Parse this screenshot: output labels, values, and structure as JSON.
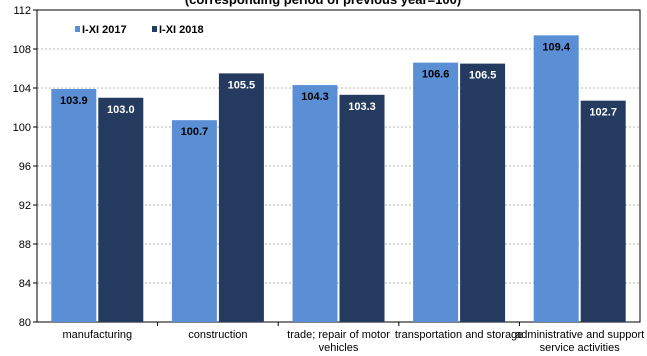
{
  "chart_data": {
    "type": "bar",
    "title": "(corresponding period of previous year=100)",
    "categories": [
      [
        "manufacturing"
      ],
      [
        "construction"
      ],
      [
        "trade; repair of motor",
        "vehicles"
      ],
      [
        "transportation and storage"
      ],
      [
        "administrative and support",
        "service activities"
      ]
    ],
    "series": [
      {
        "name": "I-XI 2017",
        "color": "#5a8fd6",
        "label_color": "#000000",
        "values": [
          103.9,
          100.7,
          104.3,
          106.6,
          109.4
        ]
      },
      {
        "name": "I-XI 2018",
        "color": "#243a5e",
        "label_color": "#ffffff",
        "values": [
          103.0,
          105.5,
          103.3,
          106.5,
          102.7
        ]
      }
    ],
    "ylim": [
      80,
      112
    ],
    "yticks": [
      80,
      84,
      88,
      92,
      96,
      100,
      104,
      108,
      112
    ],
    "grid": true,
    "legend_position": "top-left"
  }
}
